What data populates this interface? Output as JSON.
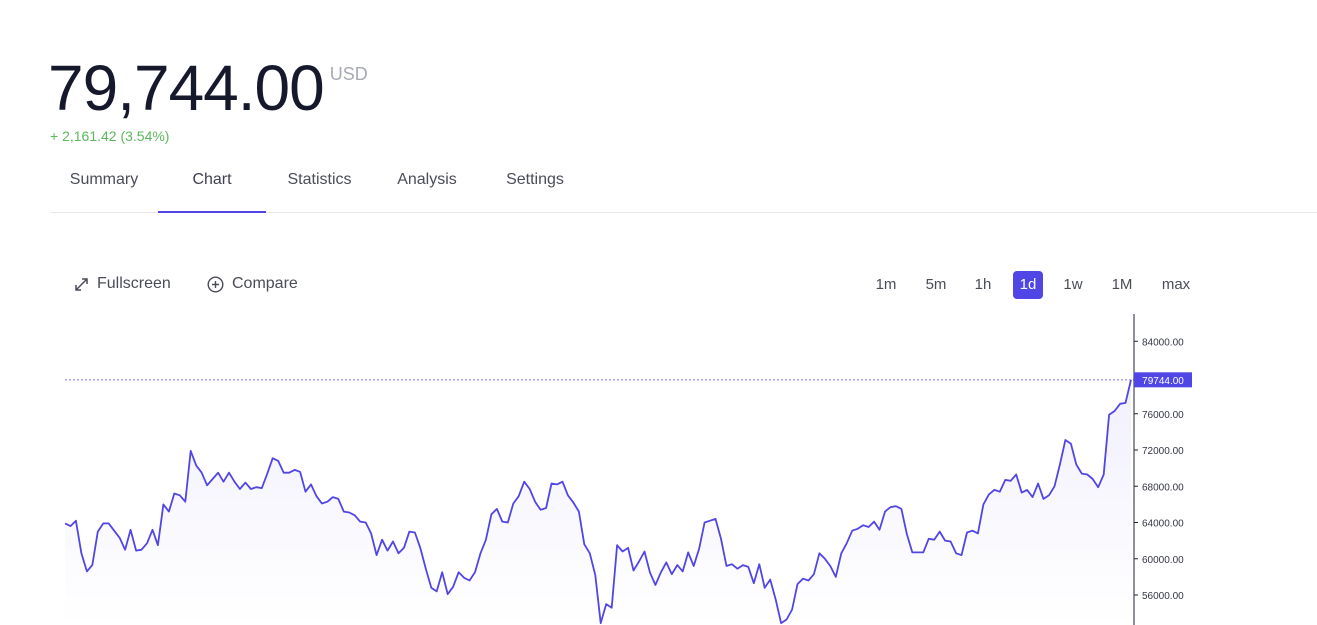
{
  "header": {
    "price": "79,744.00",
    "unit": "USD",
    "change": "+ 2,161.42 (3.54%)"
  },
  "tabs": [
    {
      "label": "Summary"
    },
    {
      "label": "Chart",
      "active": true
    },
    {
      "label": "Statistics"
    },
    {
      "label": "Analysis"
    },
    {
      "label": "Settings"
    }
  ],
  "toolbar": {
    "fullscreen_label": "Fullscreen",
    "fullscreen_icon": "expand-arrows-icon",
    "compare_label": "Compare",
    "compare_icon": "plus-circle-icon"
  },
  "ranges": [
    {
      "label": "1m"
    },
    {
      "label": "5m"
    },
    {
      "label": "1h"
    },
    {
      "label": "1d",
      "active": true
    },
    {
      "label": "1w"
    },
    {
      "label": "1M"
    },
    {
      "label": "max"
    }
  ],
  "colors": {
    "accent": "#4f46e5",
    "positive": "#5cb85c",
    "line": "#5145e6",
    "area": "#f1f0fd"
  },
  "chart_data": {
    "type": "area",
    "y_ticks": [
      84000,
      80000,
      76000,
      72000,
      68000,
      64000,
      60000,
      56000
    ],
    "y_tick_labels": [
      "84000.00",
      "80000.00",
      "76000.00",
      "72000.00",
      "68000.00",
      "64000.00",
      "60000.00",
      "56000.00"
    ],
    "current_value": 79744,
    "current_label": "79744.00",
    "ylim": [
      52600,
      87000
    ],
    "series": [
      {
        "values": [
          63900,
          63600,
          64200,
          60600,
          58600,
          59300,
          63000,
          63900,
          63900,
          63100,
          62300,
          61000,
          63200,
          60900,
          61000,
          61700,
          63200,
          61500,
          66000,
          65200,
          67200,
          67000,
          66300,
          71900,
          70300,
          69500,
          68100,
          68800,
          69500,
          68500,
          69500,
          68500,
          67700,
          68400,
          67700,
          67900,
          67800,
          69400,
          71100,
          70800,
          69500,
          69500,
          69800,
          69600,
          67400,
          68200,
          66900,
          66100,
          66300,
          66800,
          66600,
          65200,
          65100,
          64800,
          64100,
          64000,
          62800,
          60400,
          62100,
          60900,
          61900,
          60600,
          61200,
          63000,
          62900,
          61200,
          58900,
          56800,
          56400,
          58500,
          56100,
          56900,
          58500,
          57900,
          57600,
          58500,
          60600,
          62100,
          64900,
          65500,
          64100,
          64000,
          66100,
          66900,
          68500,
          67700,
          66300,
          65400,
          65600,
          68300,
          68200,
          68500,
          67000,
          66200,
          65200,
          61600,
          60600,
          58200,
          52900,
          55000,
          54600,
          61500,
          60800,
          61200,
          58700,
          59700,
          60800,
          58500,
          57100,
          58500,
          59600,
          58300,
          59300,
          58600,
          60700,
          59200,
          61100,
          64000,
          64200,
          64400,
          62200,
          59200,
          59400,
          58900,
          59300,
          59100,
          57300,
          59400,
          56800,
          57700,
          55500,
          52900,
          53300,
          54400,
          57200,
          57800,
          57600,
          58300,
          60600,
          60000,
          59200,
          58000,
          60600,
          61700,
          63100,
          63300,
          63700,
          63500,
          64100,
          63200,
          65200,
          65700,
          65800,
          65500,
          62700,
          60700,
          60700,
          60700,
          62200,
          62100,
          63000,
          62000,
          61900,
          60600,
          60400,
          62900,
          63100,
          62800,
          66000,
          67100,
          67600,
          67400,
          68700,
          68600,
          69300,
          67300,
          67600,
          66800,
          68300,
          66600,
          67000,
          68000,
          70400,
          73100,
          72700,
          70400,
          69400,
          69300,
          68800,
          67900,
          69300,
          75900,
          76300,
          77100,
          77200,
          79744
        ]
      }
    ]
  }
}
